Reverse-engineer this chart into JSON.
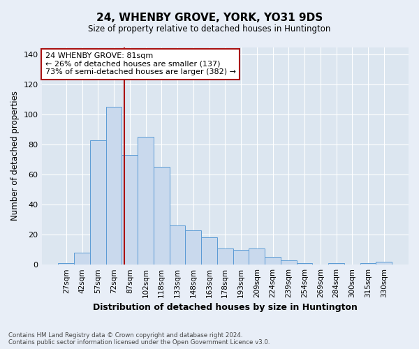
{
  "title": "24, WHENBY GROVE, YORK, YO31 9DS",
  "subtitle": "Size of property relative to detached houses in Huntington",
  "xlabel": "Distribution of detached houses by size in Huntington",
  "ylabel": "Number of detached properties",
  "categories": [
    "27sqm",
    "42sqm",
    "57sqm",
    "72sqm",
    "87sqm",
    "102sqm",
    "118sqm",
    "133sqm",
    "148sqm",
    "163sqm",
    "178sqm",
    "193sqm",
    "209sqm",
    "224sqm",
    "239sqm",
    "254sqm",
    "269sqm",
    "284sqm",
    "300sqm",
    "315sqm",
    "330sqm"
  ],
  "values": [
    1,
    8,
    83,
    105,
    73,
    85,
    65,
    26,
    23,
    18,
    11,
    10,
    11,
    5,
    3,
    1,
    0,
    1,
    0,
    1,
    2
  ],
  "bar_color": "#c9d9ed",
  "bar_edge_color": "#5b9bd5",
  "bg_color": "#e8eef7",
  "plot_bg_color": "#dce6f0",
  "grid_color": "#c8d4e3",
  "vline_x": 4.0,
  "vline_color": "#aa1111",
  "annotation_text": "24 WHENBY GROVE: 81sqm\n← 26% of detached houses are smaller (137)\n73% of semi-detached houses are larger (382) →",
  "annotation_box_color": "#ffffff",
  "annotation_box_edge_color": "#aa1111",
  "footnote": "Contains HM Land Registry data © Crown copyright and database right 2024.\nContains public sector information licensed under the Open Government Licence v3.0.",
  "ylim": [
    0,
    145
  ],
  "yticks": [
    0,
    20,
    40,
    60,
    80,
    100,
    120,
    140
  ]
}
